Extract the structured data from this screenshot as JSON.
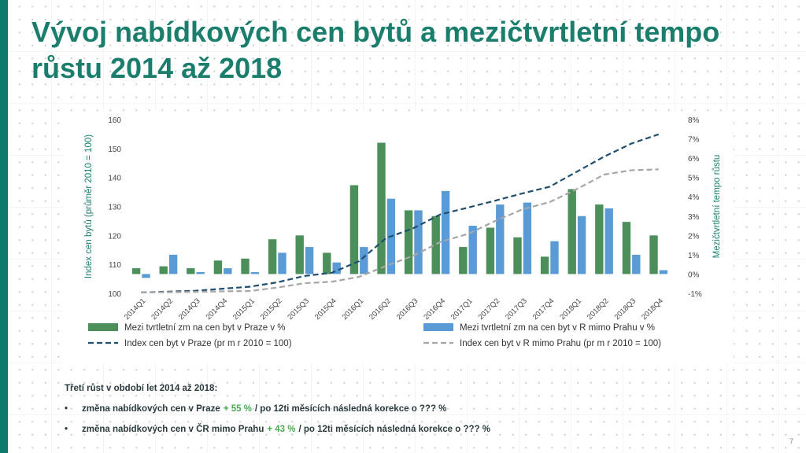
{
  "slide": {
    "title": "Vývoj nabídkových cen bytů a mezičtvrtletní tempo růstu 2014 až 2018",
    "page_number": "7",
    "notes_heading": "Třetí růst v období let 2014 až 2018:",
    "bullets": [
      {
        "marker": "•",
        "prefix": "změna nabídkových cen v Praze",
        "highlight": "+ 55 %",
        "suffix": "/ po 12ti měsících následná korekce o ??? %"
      },
      {
        "marker": "•",
        "prefix": "změna nabídkových cen v ČR mimo Prahu",
        "highlight": "+ 43 %",
        "suffix": "/ po 12ti měsících následná korekce o ??? %"
      }
    ]
  },
  "colors": {
    "accent": "#0d7a6b",
    "title": "#1b7e6d",
    "bar_prague": "#4c8f5a",
    "bar_rest": "#5b9bd5",
    "line_prague": "#1f4e6e",
    "line_rest": "#a6a6a6",
    "highlight": "#4caa52"
  },
  "chart_data": {
    "type": "bar",
    "categories": [
      "2014Q1",
      "2014Q2",
      "2014Q3",
      "2014Q4",
      "2015Q1",
      "2015Q2",
      "2015Q3",
      "2015Q4",
      "2016Q1",
      "2016Q2",
      "2016Q3",
      "2016Q4",
      "2017Q1",
      "2017Q2",
      "2017Q3",
      "2017Q4",
      "2018Q1",
      "2018Q2",
      "2018Q3",
      "2018Q4"
    ],
    "ylabel": "Index cen bytů (průměr 2010 = 100)",
    "y2label": "Mezičtvrtletní tempo růstu",
    "ylim": [
      100,
      160
    ],
    "y_ticks": [
      "100",
      "110",
      "120",
      "130",
      "140",
      "150",
      "160"
    ],
    "y2lim": [
      -1,
      8
    ],
    "y2_ticks": [
      "-1%",
      "0%",
      "1%",
      "2%",
      "3%",
      "4%",
      "5%",
      "6%",
      "7%",
      "8%"
    ],
    "grid": false,
    "legend_position": "bottom",
    "bar_series": [
      {
        "name": "Mezi tvrtletní zm na cen byt v Praze v %",
        "values": [
          0.3,
          0.4,
          0.3,
          0.7,
          0.8,
          1.8,
          2.0,
          1.1,
          4.6,
          6.8,
          3.3,
          3.0,
          1.4,
          2.4,
          1.9,
          0.9,
          4.4,
          3.6,
          2.7,
          2.0
        ]
      },
      {
        "name": "Mezi tvrtletní zm na cen byt v R mimo Prahu v %",
        "values": [
          -0.2,
          1.0,
          0.1,
          0.3,
          0.1,
          1.1,
          1.4,
          0.6,
          1.4,
          3.9,
          3.3,
          4.3,
          2.5,
          3.6,
          3.7,
          1.7,
          3.0,
          3.4,
          1.0,
          0.2
        ]
      }
    ],
    "line_series": [
      {
        "name": "Index cen byt v Praze (pr m r 2010 = 100)",
        "values": [
          100.3,
          100.6,
          100.9,
          101.6,
          102.3,
          103.8,
          106.0,
          107.1,
          111.1,
          119.1,
          122.5,
          127.3,
          129.6,
          132.0,
          134.5,
          136.8,
          142.0,
          147.2,
          151.7,
          154.9
        ]
      },
      {
        "name": "Index cen byt v R mimo Prahu (pr m r 2010 = 100)",
        "values": [
          100.3,
          100.4,
          100.5,
          100.7,
          100.8,
          102.0,
          103.5,
          104.0,
          105.7,
          109.5,
          113.0,
          117.8,
          120.5,
          125.0,
          129.0,
          131.5,
          136.0,
          141.0,
          142.5,
          142.8
        ]
      }
    ]
  }
}
